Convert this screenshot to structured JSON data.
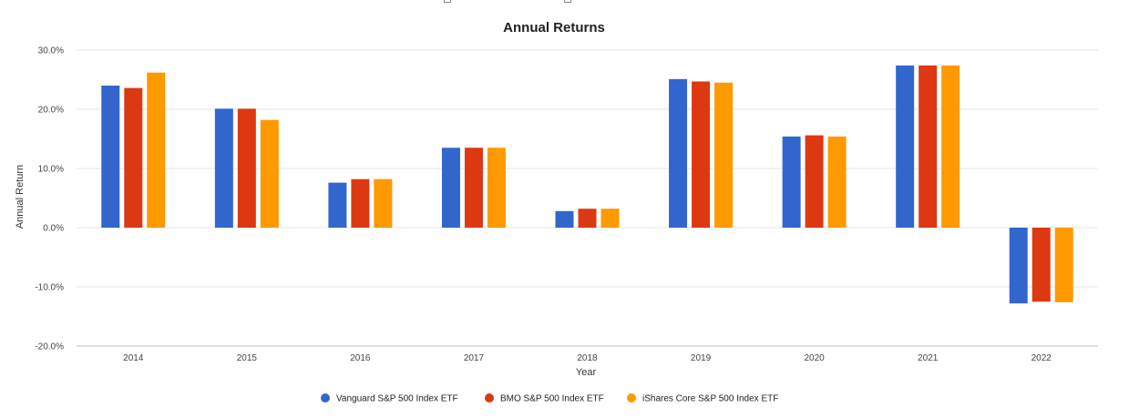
{
  "chart_data": {
    "type": "bar",
    "title": "Annual Returns",
    "xlabel": "Year",
    "ylabel": "Annual Return",
    "categories": [
      "2014",
      "2015",
      "2016",
      "2017",
      "2018",
      "2019",
      "2020",
      "2021",
      "2022"
    ],
    "ylim": [
      -20,
      30
    ],
    "yticks": [
      30,
      20,
      10,
      0,
      -10,
      -20
    ],
    "ytick_labels": [
      "30.0%",
      "20.0%",
      "10.0%",
      "0.0%",
      "-10.0%",
      "-20.0%"
    ],
    "grid": true,
    "legend_position": "bottom",
    "series": [
      {
        "name": "Vanguard S&P 500 Index ETF",
        "color": "#3366cc",
        "values": [
          24.0,
          20.1,
          7.6,
          13.5,
          2.8,
          25.1,
          15.4,
          27.4,
          -12.8
        ]
      },
      {
        "name": "BMO S&P 500 Index ETF",
        "color": "#dc3912",
        "values": [
          23.6,
          20.1,
          8.2,
          13.5,
          3.2,
          24.7,
          15.6,
          27.4,
          -12.5
        ]
      },
      {
        "name": "iShares Core S&P 500 Index ETF",
        "color": "#ff9900",
        "values": [
          26.2,
          18.2,
          8.2,
          13.5,
          3.2,
          24.5,
          15.4,
          27.4,
          -12.6
        ]
      }
    ]
  }
}
